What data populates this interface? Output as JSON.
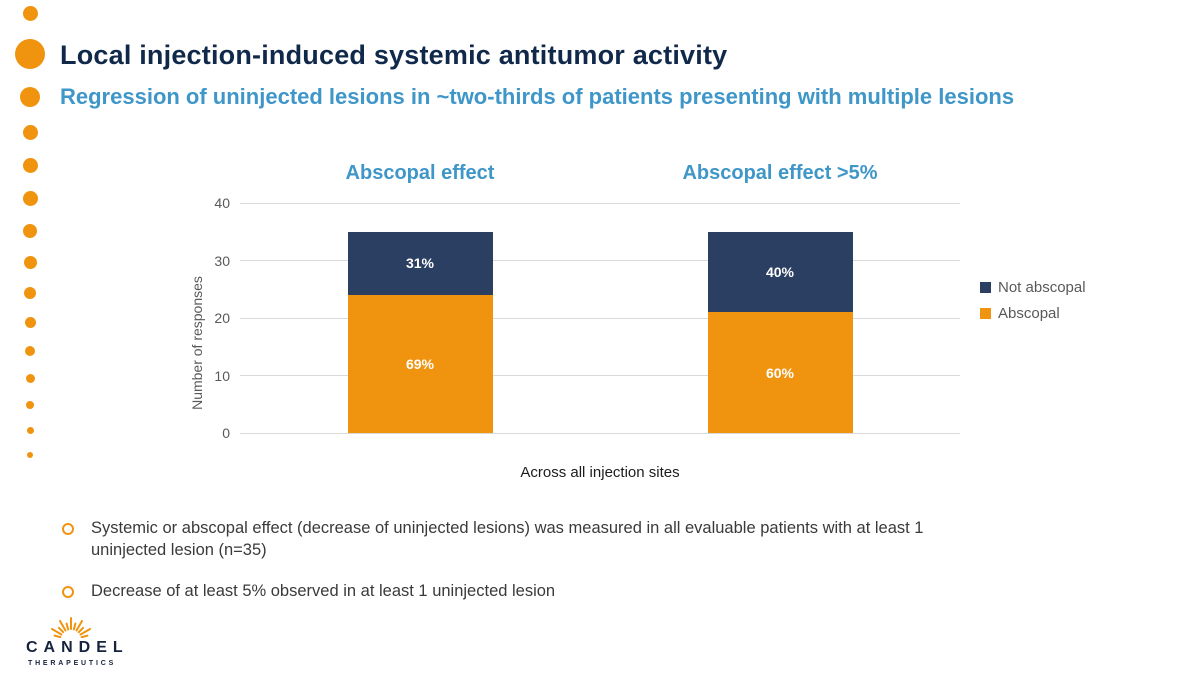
{
  "slide": {
    "title": "Local injection-induced systemic antitumor activity",
    "subtitle": "Regression of uninjected lesions in ~two-thirds of patients presenting with multiple lesions"
  },
  "colors": {
    "accent_orange": "#f0940f",
    "accent_blue": "#3f96c8",
    "title_navy": "#10294b",
    "bar_navy": "#2b3f63"
  },
  "chart_data": {
    "type": "bar",
    "stacked": true,
    "ylabel": "Number of responses",
    "xlabel": "Across all injection sites",
    "ylim": [
      0,
      40
    ],
    "yticks": [
      0,
      10,
      20,
      30,
      40
    ],
    "legend_position": "right",
    "grid": true,
    "groups": [
      {
        "title": "Abscopal effect",
        "segments": [
          {
            "name": "Abscopal",
            "value": 24,
            "label": "69%"
          },
          {
            "name": "Not abscopal",
            "value": 11,
            "label": "31%"
          }
        ]
      },
      {
        "title": "Abscopal effect >5%",
        "segments": [
          {
            "name": "Abscopal",
            "value": 21,
            "label": "60%"
          },
          {
            "name": "Not abscopal",
            "value": 14,
            "label": "40%"
          }
        ]
      }
    ],
    "legend": [
      {
        "label": "Not abscopal",
        "color": "#2b3f63"
      },
      {
        "label": "Abscopal",
        "color": "#f0940f"
      }
    ]
  },
  "bullets": [
    "Systemic or abscopal effect (decrease of uninjected lesions) was measured in all evaluable patients with at least 1 uninjected lesion (n=35)",
    "Decrease of at least 5% observed in at least 1 uninjected lesion"
  ],
  "logo": {
    "wordmark": "CANDEL",
    "subtext": "THERAPEUTICS"
  }
}
